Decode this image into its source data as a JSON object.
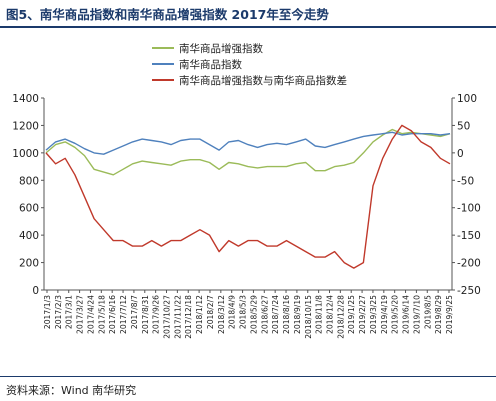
{
  "figure": {
    "title": "图5、南华商品指数和南华商品增强指数    2017年至今走势",
    "source": "资料来源：Wind 南华研究"
  },
  "chart_data": {
    "type": "line",
    "xlabel": "",
    "ylabel_left": "",
    "ylabel_right": "",
    "ylim_left": [
      0,
      1400
    ],
    "yticks_left": [
      0,
      200,
      400,
      600,
      800,
      1000,
      1200,
      1400
    ],
    "ylim_right": [
      -250,
      100
    ],
    "yticks_right": [
      -250,
      -200,
      -150,
      -100,
      -50,
      0,
      50,
      100
    ],
    "grid": false,
    "legend_position": "top-center",
    "x_tick_labels": [
      "2017/1/3",
      "2017/2/3",
      "2017/3/1",
      "2017/3/27",
      "2017/4/24",
      "2017/5/18",
      "2017/6/16",
      "2017/7/12",
      "2017/8/7",
      "2017/8/31",
      "2017/9/26",
      "2017/10/27",
      "2017/11/22",
      "2017/12/18",
      "2018/1/12",
      "2018/2/7",
      "2018/3/12",
      "2018/4/9",
      "2018/5/3",
      "2018/5/29",
      "2018/6/27",
      "2018/7/24",
      "2018/8/16",
      "2018/9/19",
      "2018/10/15",
      "2018/11/8",
      "2018/12/4",
      "2018/12/28",
      "2019/1/25",
      "2019/2/27",
      "2019/3/25",
      "2019/4/19",
      "2019/5/20",
      "2019/6/14",
      "2019/7/10",
      "2019/8/5",
      "2019/8/29",
      "2019/9/25"
    ],
    "series": [
      {
        "name": "南华商品增强指数",
        "axis": "left",
        "color": "#9bbb59",
        "values": [
          1000,
          1060,
          1080,
          1040,
          980,
          880,
          860,
          840,
          880,
          920,
          940,
          930,
          920,
          910,
          940,
          950,
          950,
          930,
          880,
          930,
          920,
          900,
          890,
          900,
          900,
          900,
          920,
          930,
          870,
          870,
          900,
          910,
          930,
          1000,
          1080,
          1130,
          1170,
          1140,
          1150,
          1140,
          1130,
          1120,
          1140
        ]
      },
      {
        "name": "南华商品指数",
        "axis": "left",
        "color": "#4f81bd",
        "values": [
          1020,
          1080,
          1100,
          1070,
          1030,
          1000,
          990,
          1020,
          1050,
          1080,
          1100,
          1090,
          1080,
          1060,
          1090,
          1100,
          1100,
          1060,
          1020,
          1080,
          1090,
          1060,
          1040,
          1060,
          1070,
          1060,
          1080,
          1100,
          1050,
          1040,
          1060,
          1080,
          1100,
          1120,
          1130,
          1140,
          1150,
          1130,
          1140,
          1140,
          1140,
          1130,
          1140
        ]
      },
      {
        "name": "南华商品增强指数与南华商品指数差",
        "axis": "right",
        "color": "#c0392b",
        "values": [
          0,
          -20,
          -10,
          -40,
          -80,
          -120,
          -140,
          -160,
          -160,
          -170,
          -170,
          -160,
          -170,
          -160,
          -160,
          -150,
          -140,
          -150,
          -180,
          -160,
          -170,
          -160,
          -160,
          -170,
          -170,
          -160,
          -170,
          -180,
          -190,
          -190,
          -180,
          -200,
          -210,
          -200,
          -60,
          -10,
          25,
          50,
          40,
          20,
          10,
          -10,
          -20
        ]
      }
    ]
  }
}
